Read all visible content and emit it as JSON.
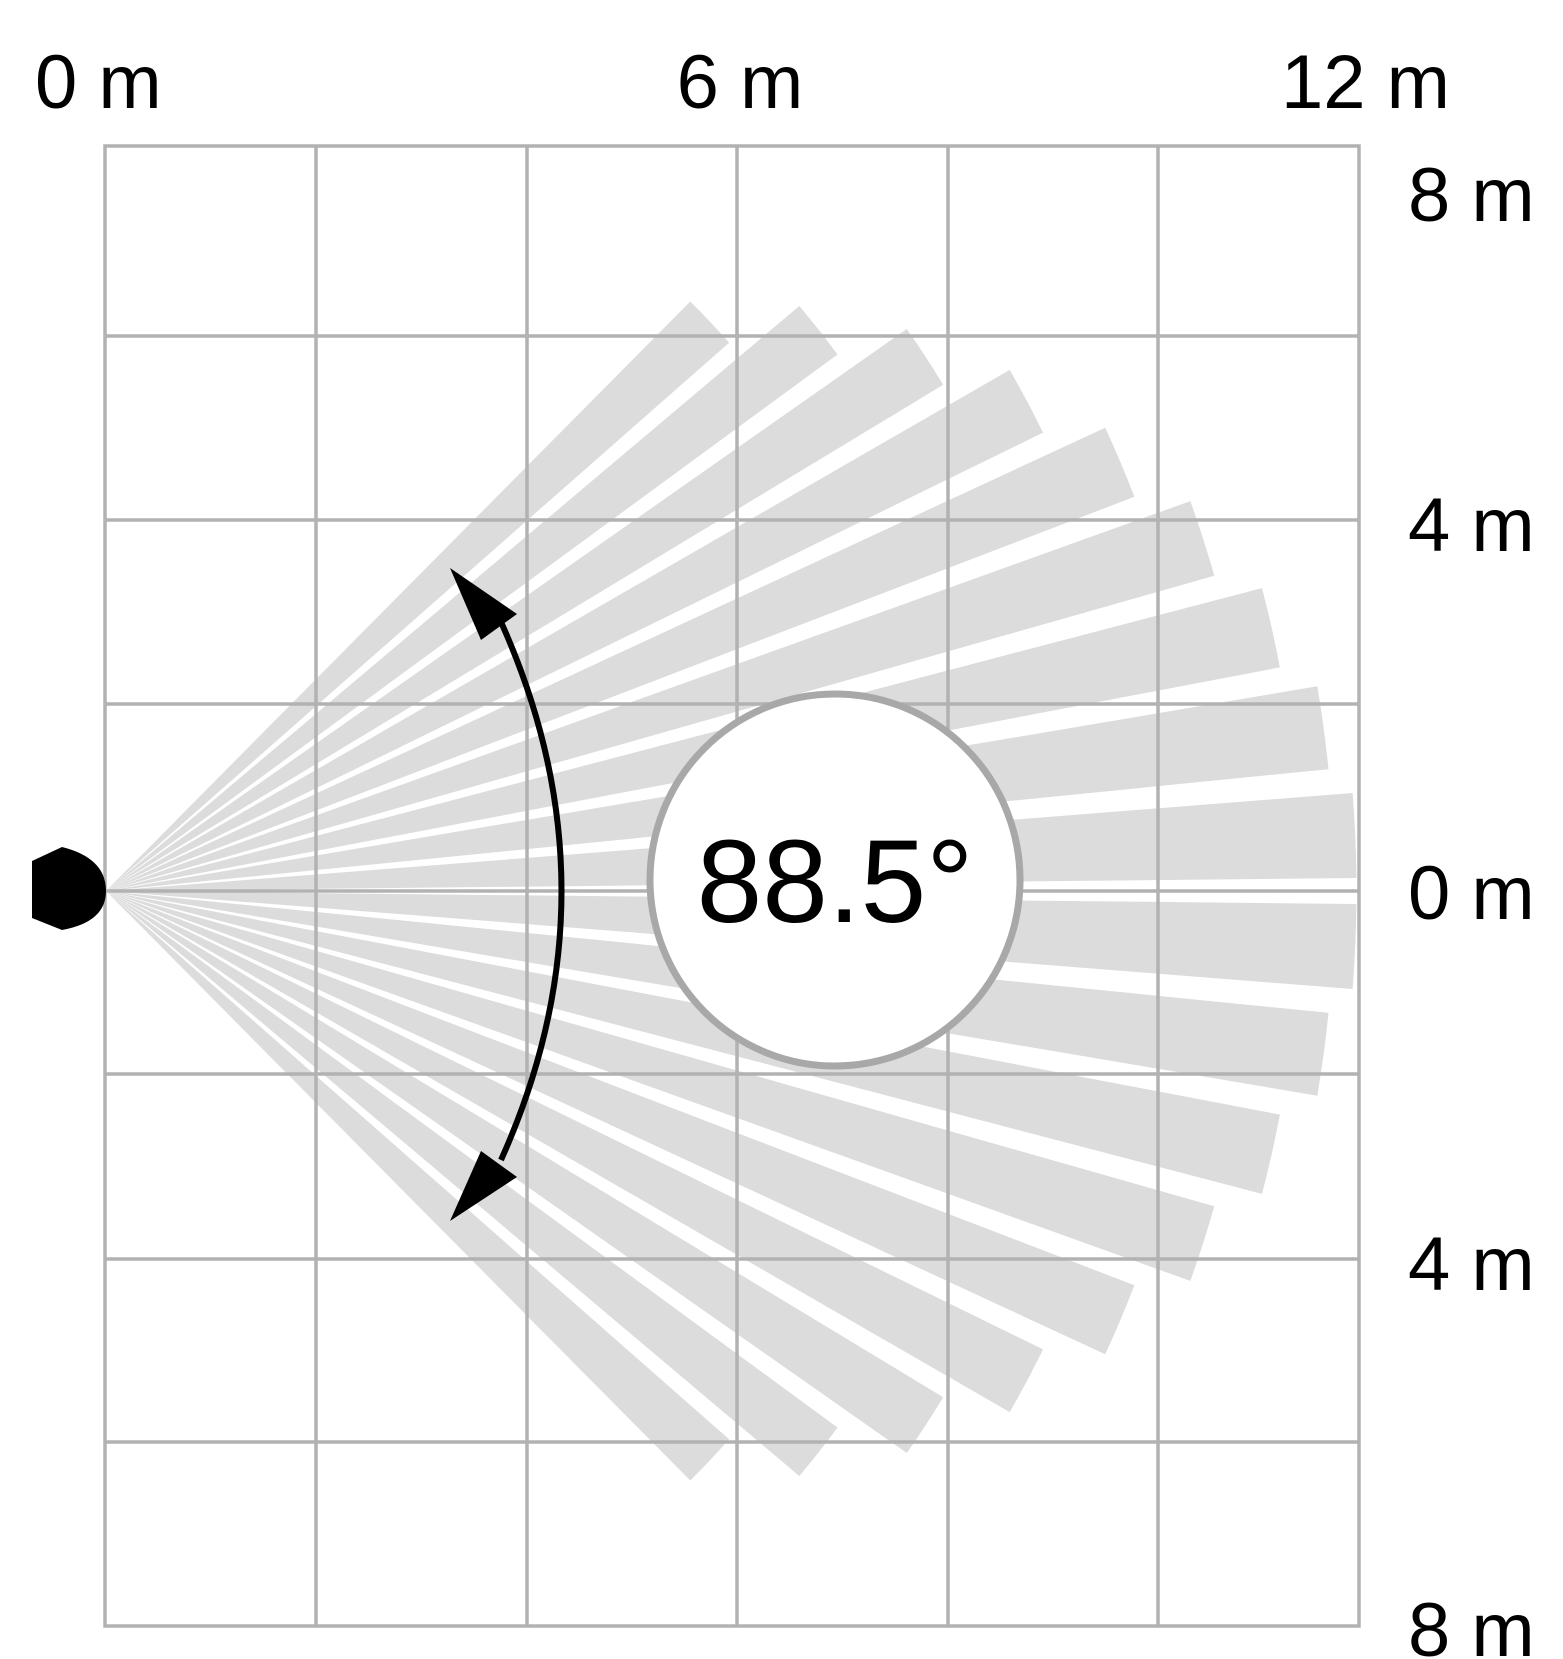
{
  "diagram": {
    "angle_label": "88.5°",
    "top_axis": {
      "labels": [
        "0 m",
        "6 m",
        "12 m"
      ]
    },
    "right_axis": {
      "labels": [
        "8 m",
        "4 m",
        "0 m",
        "4 m",
        "8 m"
      ]
    },
    "colors": {
      "grid": "#b2b2b2",
      "zone": "#dcdcdc",
      "arrow": "#000000",
      "sensor": "#000000",
      "badge_fill": "#ffffff",
      "badge_stroke": "#a8a8a8"
    },
    "detection_zone": {
      "beam_count": 18
    }
  }
}
